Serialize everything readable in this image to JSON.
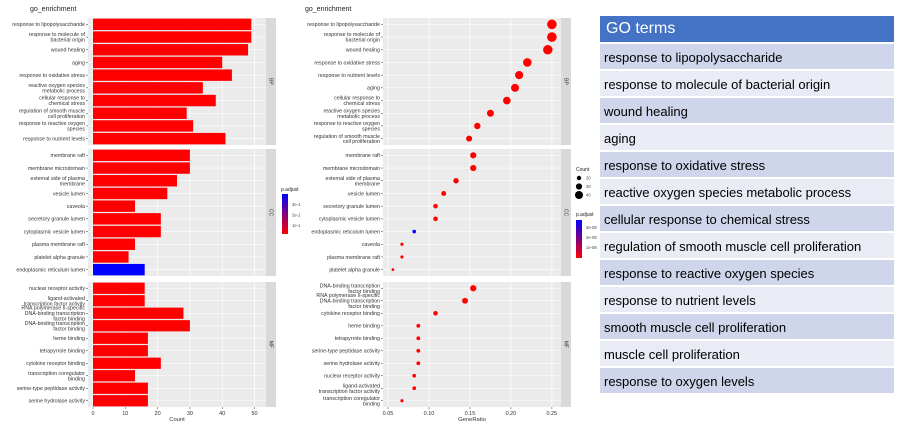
{
  "chart_data": [
    {
      "type": "bar",
      "title": "go_enrichment",
      "xlabel": "Count",
      "xlim": [
        0,
        52
      ],
      "xticks": [
        0,
        10,
        20,
        30,
        40,
        50
      ],
      "legend": {
        "title": "p.adjust",
        "labels": [
          "3e-1",
          "2e-1",
          "1e-1"
        ],
        "low_color": "#ff0000",
        "high_color": "#0000ff"
      },
      "panels": [
        {
          "name": "BP",
          "categories": [
            {
              "label": [
                "response to lipopolysaccharide"
              ],
              "count": 49,
              "color": "#ff0000"
            },
            {
              "label": [
                "response to molecule of",
                "bacterial origin"
              ],
              "count": 49,
              "color": "#ff0000"
            },
            {
              "label": [
                "wound healing"
              ],
              "count": 48,
              "color": "#ff0000"
            },
            {
              "label": [
                "aging"
              ],
              "count": 40,
              "color": "#ff0000"
            },
            {
              "label": [
                "response to oxidative stress"
              ],
              "count": 43,
              "color": "#ff0000"
            },
            {
              "label": [
                "reactive oxygen species",
                "metabolic process"
              ],
              "count": 34,
              "color": "#ff0000"
            },
            {
              "label": [
                "cellular response to",
                "chemical stress"
              ],
              "count": 38,
              "color": "#ff0000"
            },
            {
              "label": [
                "regulation of smooth muscle",
                "cell proliferation"
              ],
              "count": 29,
              "color": "#ff0000"
            },
            {
              "label": [
                "response to reactive oxygen",
                "species"
              ],
              "count": 31,
              "color": "#ff0000"
            },
            {
              "label": [
                "response to nutrient levels"
              ],
              "count": 41,
              "color": "#ff0000"
            }
          ]
        },
        {
          "name": "CC",
          "categories": [
            {
              "label": [
                "membrane raft"
              ],
              "count": 30,
              "color": "#ff0000"
            },
            {
              "label": [
                "membrane microdomain"
              ],
              "count": 30,
              "color": "#ff0000"
            },
            {
              "label": [
                "external side of plasma",
                "membrane"
              ],
              "count": 26,
              "color": "#ff0000"
            },
            {
              "label": [
                "vesicle lumen"
              ],
              "count": 23,
              "color": "#ff0000"
            },
            {
              "label": [
                "caveola"
              ],
              "count": 13,
              "color": "#ff0000"
            },
            {
              "label": [
                "secretory granule lumen"
              ],
              "count": 21,
              "color": "#ff0000"
            },
            {
              "label": [
                "cytoplasmic vesicle lumen"
              ],
              "count": 21,
              "color": "#ff0000"
            },
            {
              "label": [
                "plasma membrane raft"
              ],
              "count": 13,
              "color": "#ff0000"
            },
            {
              "label": [
                "platelet alpha granule"
              ],
              "count": 11,
              "color": "#ff0000"
            },
            {
              "label": [
                "endoplasmic reticulum lumen"
              ],
              "count": 16,
              "color": "#0000ff"
            }
          ]
        },
        {
          "name": "MF",
          "categories": [
            {
              "label": [
                "nuclear receptor activity"
              ],
              "count": 16,
              "color": "#ff0000"
            },
            {
              "label": [
                "ligand-activated",
                "transcription factor activity"
              ],
              "count": 16,
              "color": "#ff0000"
            },
            {
              "label": [
                "RNA polymerase II-specific",
                "DNA-binding transcription",
                "factor binding"
              ],
              "count": 28,
              "color": "#ff0000"
            },
            {
              "label": [
                "DNA-binding transcription",
                "factor binding"
              ],
              "count": 30,
              "color": "#ff0000"
            },
            {
              "label": [
                "heme binding"
              ],
              "count": 17,
              "color": "#ff0000"
            },
            {
              "label": [
                "tetrapyrrole binding"
              ],
              "count": 17,
              "color": "#ff0000"
            },
            {
              "label": [
                "cytokine receptor binding"
              ],
              "count": 21,
              "color": "#ff0000"
            },
            {
              "label": [
                "transcription coregulator",
                "binding"
              ],
              "count": 13,
              "color": "#ff0000"
            },
            {
              "label": [
                "serine-type peptidase activity"
              ],
              "count": 17,
              "color": "#ff0000"
            },
            {
              "label": [
                "serine hydrolase activity"
              ],
              "count": 17,
              "color": "#ff0000"
            }
          ]
        }
      ]
    },
    {
      "type": "scatter",
      "title": "go_enrichment",
      "xlabel": "GeneRatio",
      "xlim": [
        0.05,
        0.255
      ],
      "xticks": [
        0.05,
        0.1,
        0.15,
        0.2,
        0.25
      ],
      "xtick_labels": [
        "0.05",
        "0.10",
        "0.15",
        "0.20",
        "0.25"
      ],
      "size_legend": {
        "title": "Count",
        "values": [
          20,
          30,
          40
        ]
      },
      "color_legend": {
        "title": "p.adjust",
        "labels": [
          "3e-08",
          "2e-08",
          "1e-08"
        ],
        "low_color": "#ff0000",
        "high_color": "#0000ff"
      },
      "panels": [
        {
          "name": "BP",
          "points": [
            {
              "label": [
                "response to lipopolysaccharide"
              ],
              "x": 0.25,
              "count": 49,
              "color": "#ff0000"
            },
            {
              "label": [
                "response to molecule of",
                "bacterial origin"
              ],
              "x": 0.25,
              "count": 49,
              "color": "#ff0000"
            },
            {
              "label": [
                "wound healing"
              ],
              "x": 0.245,
              "count": 48,
              "color": "#ff0000"
            },
            {
              "label": [
                "response to oxidative stress"
              ],
              "x": 0.22,
              "count": 43,
              "color": "#ff0000"
            },
            {
              "label": [
                "response to nutrient levels"
              ],
              "x": 0.21,
              "count": 41,
              "color": "#ff0000"
            },
            {
              "label": [
                "aging"
              ],
              "x": 0.205,
              "count": 40,
              "color": "#ff0000"
            },
            {
              "label": [
                "cellular response to",
                "chemical stress"
              ],
              "x": 0.195,
              "count": 38,
              "color": "#ff0000"
            },
            {
              "label": [
                "reactive oxygen species",
                "metabolic process"
              ],
              "x": 0.175,
              "count": 34,
              "color": "#ff0000"
            },
            {
              "label": [
                "response to reactive oxygen",
                "species"
              ],
              "x": 0.159,
              "count": 31,
              "color": "#ff0000"
            },
            {
              "label": [
                "regulation of smooth muscle",
                "cell proliferation"
              ],
              "x": 0.149,
              "count": 29,
              "color": "#ff0000"
            }
          ]
        },
        {
          "name": "CC",
          "points": [
            {
              "label": [
                "membrane raft"
              ],
              "x": 0.154,
              "count": 30,
              "color": "#ff0000"
            },
            {
              "label": [
                "membrane microdomain"
              ],
              "x": 0.154,
              "count": 30,
              "color": "#ff0000"
            },
            {
              "label": [
                "external side of plasma",
                "membrane"
              ],
              "x": 0.133,
              "count": 26,
              "color": "#ff0000"
            },
            {
              "label": [
                "vesicle lumen"
              ],
              "x": 0.118,
              "count": 23,
              "color": "#ff0000"
            },
            {
              "label": [
                "secretory granule lumen"
              ],
              "x": 0.108,
              "count": 21,
              "color": "#ff0000"
            },
            {
              "label": [
                "cytoplasmic vesicle lumen"
              ],
              "x": 0.108,
              "count": 21,
              "color": "#ff0000"
            },
            {
              "label": [
                "endoplasmic reticulum lumen"
              ],
              "x": 0.082,
              "count": 16,
              "color": "#0000ff"
            },
            {
              "label": [
                "caveola"
              ],
              "x": 0.067,
              "count": 13,
              "color": "#ff0000"
            },
            {
              "label": [
                "plasma membrane raft"
              ],
              "x": 0.067,
              "count": 13,
              "color": "#ff0000"
            },
            {
              "label": [
                "platelet alpha granule"
              ],
              "x": 0.056,
              "count": 11,
              "color": "#ff0000"
            }
          ]
        },
        {
          "name": "MF",
          "points": [
            {
              "label": [
                "DNA-binding transcription",
                "factor binding"
              ],
              "x": 0.154,
              "count": 30,
              "color": "#ff0000"
            },
            {
              "label": [
                "RNA polymerase II-specific",
                "DNA-binding transcription",
                "factor binding"
              ],
              "x": 0.144,
              "count": 28,
              "color": "#ff0000"
            },
            {
              "label": [
                "cytokine receptor binding"
              ],
              "x": 0.108,
              "count": 21,
              "color": "#ff0000"
            },
            {
              "label": [
                "heme binding"
              ],
              "x": 0.087,
              "count": 17,
              "color": "#ff0000"
            },
            {
              "label": [
                "tetrapyrrole binding"
              ],
              "x": 0.087,
              "count": 17,
              "color": "#ff0000"
            },
            {
              "label": [
                "serine-type peptidase activity"
              ],
              "x": 0.087,
              "count": 17,
              "color": "#ff0000"
            },
            {
              "label": [
                "serine hydrolase activity"
              ],
              "x": 0.087,
              "count": 17,
              "color": "#ff0000"
            },
            {
              "label": [
                "nuclear receptor activity"
              ],
              "x": 0.082,
              "count": 16,
              "color": "#ff0000"
            },
            {
              "label": [
                "ligand-activated",
                "transcription factor activity"
              ],
              "x": 0.082,
              "count": 16,
              "color": "#ff0000"
            },
            {
              "label": [
                "transcription coregulator",
                "binding"
              ],
              "x": 0.067,
              "count": 13,
              "color": "#ff0000"
            }
          ]
        }
      ]
    }
  ],
  "go_terms": {
    "header": "GO terms",
    "rows": [
      "response to lipopolysaccharide",
      "response to molecule of bacterial origin",
      "wound healing",
      "aging",
      "response to oxidative stress",
      "reactive oxygen species metabolic process",
      "cellular response to chemical stress",
      "regulation of smooth muscle cell proliferation",
      "response to reactive oxygen species",
      "response to nutrient levels",
      "smooth muscle cell proliferation",
      "muscle cell proliferation",
      "response to oxygen levels"
    ]
  }
}
